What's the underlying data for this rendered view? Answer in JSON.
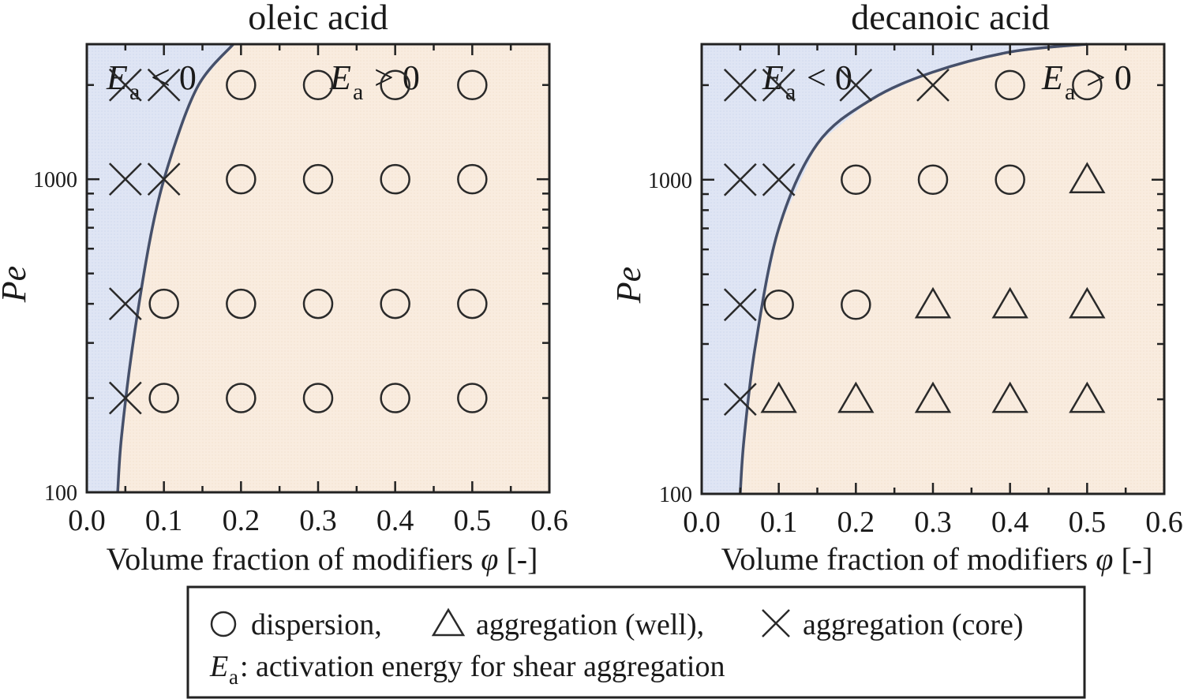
{
  "legend": {
    "circle_label": "dispersion,",
    "triangle_label": "aggregation (well),",
    "cross_label": "aggregation (core)",
    "ea_symbol": "E",
    "ea_sub": "a",
    "ea_desc": " : activation energy for shear aggregation"
  },
  "colors": {
    "negative_region": "#dfe5f4",
    "positive_region": "#f9ecdf",
    "boundary": "#46506a",
    "marker": "#2a2a2a"
  },
  "chart_data": [
    {
      "type": "scatter",
      "title": "oleic acid",
      "xlabel": "Volume fraction of modifiers",
      "xlabel_symbol": "φ",
      "xlabel_unit": " [-]",
      "ylabel": "Pe",
      "xlim": [
        0.0,
        0.6
      ],
      "ylim": [
        100,
        2700
      ],
      "yscale": "log",
      "x_ticks": [
        "0.0",
        "0.1",
        "0.2",
        "0.3",
        "0.4",
        "0.5",
        "0.6"
      ],
      "y_ticks": [
        "100",
        "1000"
      ],
      "region_labels": {
        "negative": {
          "symbol": "E",
          "sub": "a",
          "rel": "< 0"
        },
        "positive": {
          "symbol": "E",
          "sub": "a",
          "rel": "> 0"
        }
      },
      "boundary": [
        [
          0.04,
          100
        ],
        [
          0.045,
          150
        ],
        [
          0.06,
          300
        ],
        [
          0.085,
          700
        ],
        [
          0.11,
          1200
        ],
        [
          0.145,
          2000
        ],
        [
          0.19,
          2700
        ]
      ],
      "points": [
        {
          "x": 0.05,
          "y": 2000,
          "marker": "cross"
        },
        {
          "x": 0.1,
          "y": 2000,
          "marker": "cross"
        },
        {
          "x": 0.2,
          "y": 2000,
          "marker": "circle"
        },
        {
          "x": 0.3,
          "y": 2000,
          "marker": "circle"
        },
        {
          "x": 0.4,
          "y": 2000,
          "marker": "circle"
        },
        {
          "x": 0.5,
          "y": 2000,
          "marker": "circle"
        },
        {
          "x": 0.05,
          "y": 1000,
          "marker": "cross"
        },
        {
          "x": 0.1,
          "y": 1000,
          "marker": "cross"
        },
        {
          "x": 0.2,
          "y": 1000,
          "marker": "circle"
        },
        {
          "x": 0.3,
          "y": 1000,
          "marker": "circle"
        },
        {
          "x": 0.4,
          "y": 1000,
          "marker": "circle"
        },
        {
          "x": 0.5,
          "y": 1000,
          "marker": "circle"
        },
        {
          "x": 0.05,
          "y": 400,
          "marker": "cross"
        },
        {
          "x": 0.1,
          "y": 400,
          "marker": "circle"
        },
        {
          "x": 0.2,
          "y": 400,
          "marker": "circle"
        },
        {
          "x": 0.3,
          "y": 400,
          "marker": "circle"
        },
        {
          "x": 0.4,
          "y": 400,
          "marker": "circle"
        },
        {
          "x": 0.5,
          "y": 400,
          "marker": "circle"
        },
        {
          "x": 0.05,
          "y": 200,
          "marker": "cross"
        },
        {
          "x": 0.1,
          "y": 200,
          "marker": "circle"
        },
        {
          "x": 0.2,
          "y": 200,
          "marker": "circle"
        },
        {
          "x": 0.3,
          "y": 200,
          "marker": "circle"
        },
        {
          "x": 0.4,
          "y": 200,
          "marker": "circle"
        },
        {
          "x": 0.5,
          "y": 200,
          "marker": "circle"
        }
      ]
    },
    {
      "type": "scatter",
      "title": "decanoic acid",
      "xlabel": "Volume fraction of modifiers",
      "xlabel_symbol": "φ",
      "xlabel_unit": " [-]",
      "ylabel": "Pe",
      "xlim": [
        0.0,
        0.6
      ],
      "ylim": [
        100,
        2700
      ],
      "yscale": "log",
      "x_ticks": [
        "0.0",
        "0.1",
        "0.2",
        "0.3",
        "0.4",
        "0.5",
        "0.6"
      ],
      "y_ticks": [
        "100",
        "1000"
      ],
      "region_labels": {
        "negative": {
          "symbol": "E",
          "sub": "a",
          "rel": "< 0"
        },
        "positive": {
          "symbol": "E",
          "sub": "a",
          "rel": "> 0"
        }
      },
      "boundary": [
        [
          0.05,
          100
        ],
        [
          0.055,
          150
        ],
        [
          0.07,
          300
        ],
        [
          0.1,
          700
        ],
        [
          0.15,
          1300
        ],
        [
          0.22,
          1800
        ],
        [
          0.3,
          2200
        ],
        [
          0.4,
          2550
        ],
        [
          0.5,
          2700
        ]
      ],
      "points": [
        {
          "x": 0.05,
          "y": 2000,
          "marker": "cross"
        },
        {
          "x": 0.1,
          "y": 2000,
          "marker": "cross"
        },
        {
          "x": 0.2,
          "y": 2000,
          "marker": "cross"
        },
        {
          "x": 0.3,
          "y": 2000,
          "marker": "cross"
        },
        {
          "x": 0.4,
          "y": 2000,
          "marker": "circle"
        },
        {
          "x": 0.5,
          "y": 2000,
          "marker": "circle"
        },
        {
          "x": 0.05,
          "y": 1000,
          "marker": "cross"
        },
        {
          "x": 0.1,
          "y": 1000,
          "marker": "cross"
        },
        {
          "x": 0.2,
          "y": 1000,
          "marker": "circle"
        },
        {
          "x": 0.3,
          "y": 1000,
          "marker": "circle"
        },
        {
          "x": 0.4,
          "y": 1000,
          "marker": "circle"
        },
        {
          "x": 0.5,
          "y": 1000,
          "marker": "triangle"
        },
        {
          "x": 0.05,
          "y": 400,
          "marker": "cross"
        },
        {
          "x": 0.1,
          "y": 400,
          "marker": "circle"
        },
        {
          "x": 0.2,
          "y": 400,
          "marker": "circle"
        },
        {
          "x": 0.3,
          "y": 400,
          "marker": "triangle"
        },
        {
          "x": 0.4,
          "y": 400,
          "marker": "triangle"
        },
        {
          "x": 0.5,
          "y": 400,
          "marker": "triangle"
        },
        {
          "x": 0.05,
          "y": 200,
          "marker": "cross"
        },
        {
          "x": 0.1,
          "y": 200,
          "marker": "triangle"
        },
        {
          "x": 0.2,
          "y": 200,
          "marker": "triangle"
        },
        {
          "x": 0.3,
          "y": 200,
          "marker": "triangle"
        },
        {
          "x": 0.4,
          "y": 200,
          "marker": "triangle"
        },
        {
          "x": 0.5,
          "y": 200,
          "marker": "triangle"
        }
      ]
    }
  ]
}
